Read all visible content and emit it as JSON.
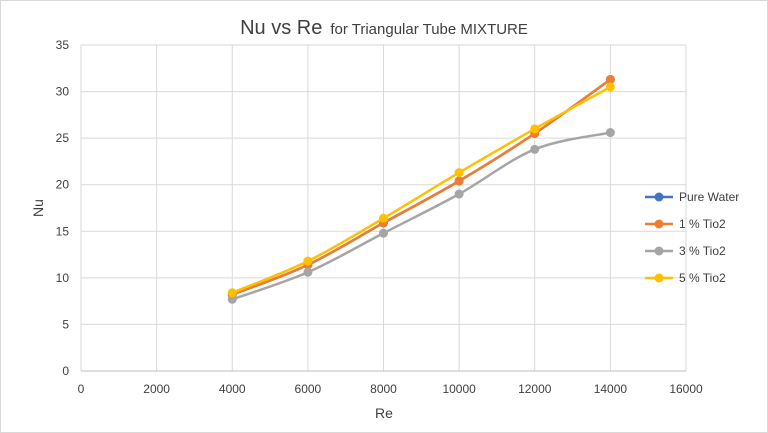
{
  "chart_data": {
    "type": "line",
    "title": "Nu vs Re",
    "subtitle": "for Triangular Tube MIXTURE",
    "xlabel": "Re",
    "ylabel": "Nu",
    "xlim": [
      0,
      16000
    ],
    "ylim": [
      0,
      35
    ],
    "xticks": [
      0,
      2000,
      4000,
      6000,
      8000,
      10000,
      12000,
      14000,
      16000
    ],
    "yticks": [
      0,
      5,
      10,
      15,
      20,
      25,
      30,
      35
    ],
    "grid": true,
    "legend_position": "right",
    "x": [
      4000,
      6000,
      8000,
      10000,
      12000,
      14000
    ],
    "series": [
      {
        "name": "Pure Water",
        "color": "#4472c4",
        "values": [
          8.2,
          11.4,
          15.9,
          20.4,
          25.5,
          31.3
        ]
      },
      {
        "name": "1 % Tio2",
        "color": "#ed7d31",
        "values": [
          8.2,
          11.4,
          15.9,
          20.4,
          25.5,
          31.3
        ]
      },
      {
        "name": "3 % Tio2",
        "color": "#a5a5a5",
        "values": [
          7.7,
          10.6,
          14.8,
          19.0,
          23.8,
          25.6
        ]
      },
      {
        "name": "5 % Tio2",
        "color": "#ffc000",
        "values": [
          8.4,
          11.8,
          16.4,
          21.3,
          26.0,
          30.5
        ]
      }
    ]
  }
}
